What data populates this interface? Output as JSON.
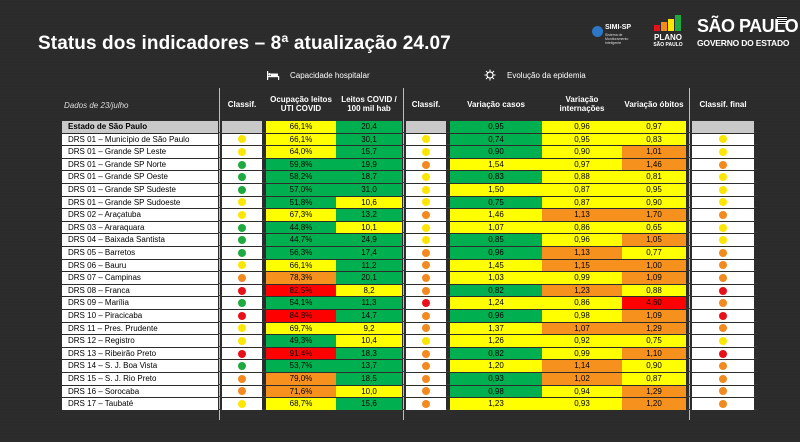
{
  "title": "Status dos indicadores – 8ª atualização 24.07",
  "logos": {
    "simi_title": "SIMI-SP",
    "simi_subtitle": "Sistema de Monitoramento Inteligente",
    "plano_line1": "PLANO",
    "plano_line2": "SÃO PAULO",
    "sp_line1": "SÃO PAULO",
    "sp_line2": "GOVERNO DO ESTADO"
  },
  "sections": {
    "capacidade": "Capacidade hospitalar",
    "evolucao": "Evolução da epidemia"
  },
  "headers": {
    "data_label": "Dados de 23/julho",
    "classif1": "Classif.",
    "ocupacao": "Ocupação leitos UTI COVID",
    "leitos": "Leitos COVID / 100 mil hab",
    "classif2": "Classif.",
    "var_casos": "Variação casos",
    "var_intern": "Variação internações",
    "var_obitos": "Variação óbitos",
    "classif_final": "Classif. final"
  },
  "colors": {
    "green": "#00b050",
    "yellow": "#ffff00",
    "orange": "#f7911e",
    "red": "#ff0000",
    "dot_green": "#1faa3f",
    "dot_yellow": "#ffe600",
    "dot_orange": "#f28a1f",
    "dot_red": "#e8111a"
  },
  "rows": [
    {
      "name": "Estado de São Paulo",
      "state": true,
      "c1": "",
      "ocup": "66,1%",
      "ocup_c": "yellow",
      "leitos": "20,4",
      "leitos_c": "green",
      "c2": "",
      "casos": "0,95",
      "casos_c": "green",
      "intern": "0,96",
      "intern_c": "yellow",
      "obitos": "0,97",
      "obitos_c": "yellow",
      "cf": ""
    },
    {
      "name": "DRS 01 – Município de São Paulo",
      "c1": "yellow",
      "ocup": "66,1%",
      "ocup_c": "yellow",
      "leitos": "30,1",
      "leitos_c": "green",
      "c2": "yellow",
      "casos": "0,74",
      "casos_c": "green",
      "intern": "0,95",
      "intern_c": "yellow",
      "obitos": "0,83",
      "obitos_c": "yellow",
      "cf": "yellow"
    },
    {
      "name": "DRS 01 – Grande SP Leste",
      "c1": "yellow",
      "ocup": "64,0%",
      "ocup_c": "yellow",
      "leitos": "15,7",
      "leitos_c": "green",
      "c2": "yellow",
      "casos": "0,90",
      "casos_c": "green",
      "intern": "0,90",
      "intern_c": "yellow",
      "obitos": "1,01",
      "obitos_c": "orange",
      "cf": "yellow"
    },
    {
      "name": "DRS 01 – Grande SP Norte",
      "c1": "green",
      "ocup": "59,8%",
      "ocup_c": "green",
      "leitos": "19,9",
      "leitos_c": "green",
      "c2": "orange",
      "casos": "1,54",
      "casos_c": "yellow",
      "intern": "0,97",
      "intern_c": "yellow",
      "obitos": "1,46",
      "obitos_c": "orange",
      "cf": "orange"
    },
    {
      "name": "DRS 01 – Grande SP Oeste",
      "c1": "green",
      "ocup": "58,2%",
      "ocup_c": "green",
      "leitos": "18,7",
      "leitos_c": "green",
      "c2": "yellow",
      "casos": "0,83",
      "casos_c": "green",
      "intern": "0,88",
      "intern_c": "yellow",
      "obitos": "0,81",
      "obitos_c": "yellow",
      "cf": "yellow"
    },
    {
      "name": "DRS 01 – Grande SP Sudeste",
      "c1": "green",
      "ocup": "57,0%",
      "ocup_c": "green",
      "leitos": "31,0",
      "leitos_c": "green",
      "c2": "yellow",
      "casos": "1,50",
      "casos_c": "yellow",
      "intern": "0,87",
      "intern_c": "yellow",
      "obitos": "0,95",
      "obitos_c": "yellow",
      "cf": "yellow"
    },
    {
      "name": "DRS 01 – Grande SP Sudoeste",
      "c1": "yellow",
      "ocup": "51,8%",
      "ocup_c": "green",
      "leitos": "10,6",
      "leitos_c": "yellow",
      "c2": "yellow",
      "casos": "0,75",
      "casos_c": "green",
      "intern": "0,87",
      "intern_c": "yellow",
      "obitos": "0,90",
      "obitos_c": "yellow",
      "cf": "yellow"
    },
    {
      "name": "DRS 02 – Araçatuba",
      "c1": "yellow",
      "ocup": "67,3%",
      "ocup_c": "yellow",
      "leitos": "13,2",
      "leitos_c": "green",
      "c2": "orange",
      "casos": "1,46",
      "casos_c": "yellow",
      "intern": "1,13",
      "intern_c": "orange",
      "obitos": "1,70",
      "obitos_c": "orange",
      "cf": "orange"
    },
    {
      "name": "DRS 03 – Araraquara",
      "c1": "green",
      "ocup": "44,8%",
      "ocup_c": "green",
      "leitos": "10,1",
      "leitos_c": "yellow",
      "c2": "yellow",
      "casos": "1,07",
      "casos_c": "yellow",
      "intern": "0,86",
      "intern_c": "yellow",
      "obitos": "0,65",
      "obitos_c": "yellow",
      "cf": "yellow"
    },
    {
      "name": "DRS 04 – Baixada Santista",
      "c1": "green",
      "ocup": "44,7%",
      "ocup_c": "green",
      "leitos": "24,9",
      "leitos_c": "green",
      "c2": "yellow",
      "casos": "0,85",
      "casos_c": "green",
      "intern": "0,96",
      "intern_c": "yellow",
      "obitos": "1,05",
      "obitos_c": "orange",
      "cf": "yellow"
    },
    {
      "name": "DRS 05 – Barretos",
      "c1": "green",
      "ocup": "56,3%",
      "ocup_c": "green",
      "leitos": "17,4",
      "leitos_c": "green",
      "c2": "orange",
      "casos": "0,96",
      "casos_c": "green",
      "intern": "1,13",
      "intern_c": "orange",
      "obitos": "0,77",
      "obitos_c": "yellow",
      "cf": "orange"
    },
    {
      "name": "DRS 06 – Bauru",
      "c1": "yellow",
      "ocup": "66,1%",
      "ocup_c": "yellow",
      "leitos": "11,2",
      "leitos_c": "green",
      "c2": "orange",
      "casos": "1,45",
      "casos_c": "yellow",
      "intern": "1,15",
      "intern_c": "orange",
      "obitos": "1,00",
      "obitos_c": "orange",
      "cf": "orange"
    },
    {
      "name": "DRS 07 – Campinas",
      "c1": "orange",
      "ocup": "78,3%",
      "ocup_c": "orange",
      "leitos": "20,1",
      "leitos_c": "green",
      "c2": "orange",
      "casos": "1,03",
      "casos_c": "yellow",
      "intern": "0,99",
      "intern_c": "yellow",
      "obitos": "1,09",
      "obitos_c": "orange",
      "cf": "orange"
    },
    {
      "name": "DRS 08 – Franca",
      "c1": "red",
      "ocup": "82,5%",
      "ocup_c": "red",
      "leitos": "8,2",
      "leitos_c": "yellow",
      "c2": "orange",
      "casos": "0,82",
      "casos_c": "green",
      "intern": "1,23",
      "intern_c": "orange",
      "obitos": "0,88",
      "obitos_c": "yellow",
      "cf": "red"
    },
    {
      "name": "DRS 09 – Marília",
      "c1": "green",
      "ocup": "54,1%",
      "ocup_c": "green",
      "leitos": "11,3",
      "leitos_c": "green",
      "c2": "red",
      "casos": "1,24",
      "casos_c": "yellow",
      "intern": "0,86",
      "intern_c": "yellow",
      "obitos": "4,60",
      "obitos_c": "red",
      "cf": "orange"
    },
    {
      "name": "DRS 10 – Piracicaba",
      "c1": "red",
      "ocup": "84,8%",
      "ocup_c": "red",
      "leitos": "14,7",
      "leitos_c": "green",
      "c2": "orange",
      "casos": "0,96",
      "casos_c": "green",
      "intern": "0,98",
      "intern_c": "yellow",
      "obitos": "1,09",
      "obitos_c": "orange",
      "cf": "red"
    },
    {
      "name": "DRS 11 – Pres. Prudente",
      "c1": "yellow",
      "ocup": "69,7%",
      "ocup_c": "yellow",
      "leitos": "9,2",
      "leitos_c": "yellow",
      "c2": "orange",
      "casos": "1,37",
      "casos_c": "yellow",
      "intern": "1,07",
      "intern_c": "orange",
      "obitos": "1,29",
      "obitos_c": "orange",
      "cf": "orange"
    },
    {
      "name": "DRS 12 – Registro",
      "c1": "yellow",
      "ocup": "49,3%",
      "ocup_c": "green",
      "leitos": "10,4",
      "leitos_c": "yellow",
      "c2": "yellow",
      "casos": "1,26",
      "casos_c": "yellow",
      "intern": "0,92",
      "intern_c": "yellow",
      "obitos": "0,75",
      "obitos_c": "yellow",
      "cf": "yellow"
    },
    {
      "name": "DRS 13 – Ribeirão Preto",
      "c1": "red",
      "ocup": "91,4%",
      "ocup_c": "red",
      "leitos": "18,3",
      "leitos_c": "green",
      "c2": "orange",
      "casos": "0,82",
      "casos_c": "green",
      "intern": "0,99",
      "intern_c": "yellow",
      "obitos": "1,10",
      "obitos_c": "orange",
      "cf": "red"
    },
    {
      "name": "DRS 14 – S. J. Boa Vista",
      "c1": "green",
      "ocup": "53,7%",
      "ocup_c": "green",
      "leitos": "13,7",
      "leitos_c": "green",
      "c2": "orange",
      "casos": "1,20",
      "casos_c": "yellow",
      "intern": "1,14",
      "intern_c": "orange",
      "obitos": "0,90",
      "obitos_c": "yellow",
      "cf": "orange"
    },
    {
      "name": "DRS 15 – S. J. Rio Preto",
      "c1": "orange",
      "ocup": "79,0%",
      "ocup_c": "orange",
      "leitos": "18,5",
      "leitos_c": "green",
      "c2": "orange",
      "casos": "0,93",
      "casos_c": "green",
      "intern": "1,02",
      "intern_c": "orange",
      "obitos": "0,87",
      "obitos_c": "yellow",
      "cf": "orange"
    },
    {
      "name": "DRS 16 – Sorocaba",
      "c1": "orange",
      "ocup": "71,6%",
      "ocup_c": "orange",
      "leitos": "10,0",
      "leitos_c": "yellow",
      "c2": "orange",
      "casos": "0,98",
      "casos_c": "green",
      "intern": "0,94",
      "intern_c": "yellow",
      "obitos": "1,29",
      "obitos_c": "orange",
      "cf": "orange"
    },
    {
      "name": "DRS 17 – Taubaté",
      "c1": "yellow",
      "ocup": "68,7%",
      "ocup_c": "yellow",
      "leitos": "15,6",
      "leitos_c": "green",
      "c2": "orange",
      "casos": "1,23",
      "casos_c": "yellow",
      "intern": "0,93",
      "intern_c": "yellow",
      "obitos": "1,20",
      "obitos_c": "orange",
      "cf": "orange"
    }
  ]
}
